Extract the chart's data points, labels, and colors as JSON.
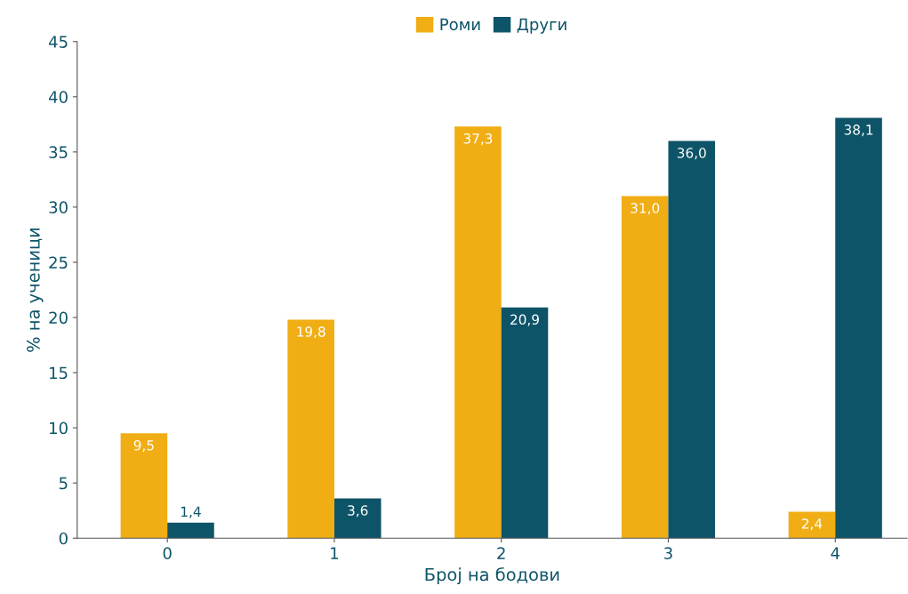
{
  "chart_data": {
    "type": "bar",
    "xlabel": "Број на бодови",
    "ylabel": "% на ученици",
    "categories": [
      "0",
      "1",
      "2",
      "3",
      "4"
    ],
    "series": [
      {
        "name": "Роми",
        "color": "#f0ae14",
        "values": [
          9.5,
          19.8,
          37.3,
          31.0,
          2.4
        ],
        "value_labels": [
          "9,5",
          "19,8",
          "37,3",
          "31,0",
          "2,4"
        ]
      },
      {
        "name": "Други",
        "color": "#0e5468",
        "values": [
          1.4,
          3.6,
          20.9,
          36.0,
          38.1
        ],
        "value_labels": [
          "1,4",
          "3,6",
          "20,9",
          "36,0",
          "38,1"
        ]
      }
    ],
    "ylim": [
      0,
      45
    ],
    "yticks": [
      0,
      5,
      10,
      15,
      20,
      25,
      30,
      35,
      40,
      45
    ],
    "legend": "top",
    "grid": false
  }
}
